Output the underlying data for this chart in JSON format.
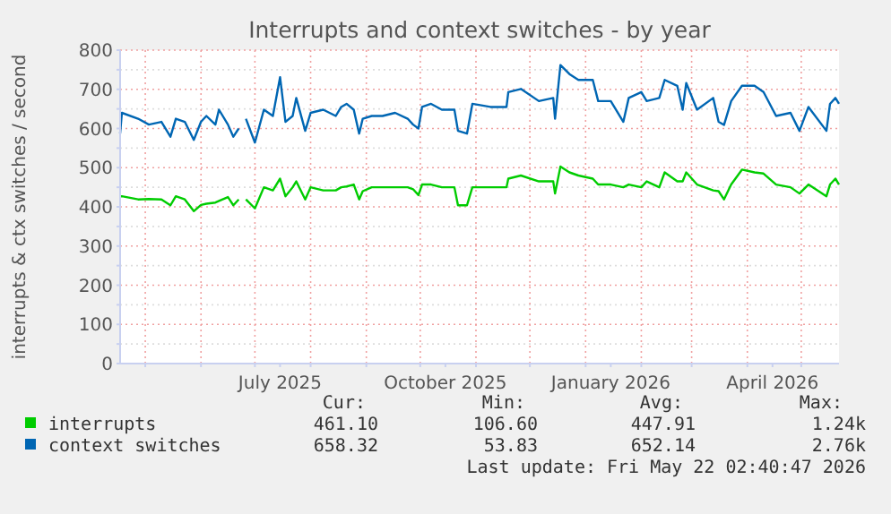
{
  "chart_data": {
    "type": "line",
    "title": "Interrupts and context switches - by year",
    "ylabel": "interrupts & ctx switches / second",
    "x": [
      "2025-04-17",
      "2025-04-18",
      "2025-04-27",
      "2025-05-03",
      "2025-05-10",
      "2025-05-15",
      "2025-05-18",
      "2025-05-23",
      "2025-05-28",
      "2025-06-01",
      "2025-06-04",
      "2025-06-09",
      "2025-06-11",
      "2025-06-16",
      "2025-06-19",
      "2025-06-22",
      "2025-06-24",
      "2025-06-26",
      "2025-07-01",
      "2025-07-06",
      "2025-07-11",
      "2025-07-15",
      "2025-07-18",
      "2025-07-22",
      "2025-07-24",
      "2025-07-29",
      "2025-08-01",
      "2025-08-08",
      "2025-08-15",
      "2025-08-18",
      "2025-08-21",
      "2025-08-25",
      "2025-08-28",
      "2025-08-30",
      "2025-09-04",
      "2025-09-10",
      "2025-09-17",
      "2025-09-24",
      "2025-09-27",
      "2025-09-30",
      "2025-10-02",
      "2025-10-07",
      "2025-10-13",
      "2025-10-20",
      "2025-10-22",
      "2025-10-27",
      "2025-10-30",
      "2025-11-09",
      "2025-11-18",
      "2025-11-19",
      "2025-11-26",
      "2025-12-06",
      "2025-12-14",
      "2025-12-15",
      "2025-12-18",
      "2025-12-23",
      "2025-12-28",
      "2026-01-05",
      "2026-01-08",
      "2026-01-15",
      "2026-01-22",
      "2026-01-25",
      "2026-02-01",
      "2026-02-04",
      "2026-02-11",
      "2026-02-14",
      "2026-02-21",
      "2026-02-24",
      "2026-02-26",
      "2026-03-04",
      "2026-03-13",
      "2026-03-16",
      "2026-03-19",
      "2026-03-23",
      "2026-03-29",
      "2026-04-05",
      "2026-04-10",
      "2026-04-17",
      "2026-04-25",
      "2026-04-30",
      "2026-05-05",
      "2026-05-15",
      "2026-05-17",
      "2026-05-20",
      "2026-05-22"
    ],
    "series": [
      {
        "name": "interrupts",
        "color": "#00cc00",
        "values": [
          427,
          427,
          419,
          420,
          419,
          404,
          427,
          419,
          389,
          405,
          408,
          411,
          415,
          425,
          404,
          419,
          null,
          419,
          396,
          450,
          442,
          472,
          427,
          450,
          465,
          419,
          450,
          442,
          442,
          450,
          452,
          457,
          419,
          440,
          450,
          450,
          450,
          450,
          445,
          430,
          457,
          457,
          450,
          450,
          404,
          404,
          450,
          450,
          450,
          472,
          480,
          465,
          465,
          434,
          503,
          488,
          480,
          472,
          457,
          457,
          450,
          457,
          450,
          465,
          450,
          488,
          465,
          465,
          488,
          457,
          442,
          440,
          419,
          457,
          495,
          488,
          485,
          457,
          450,
          434,
          457,
          427,
          457,
          472,
          457
        ]
      },
      {
        "name": "context switches",
        "color": "#0066b3",
        "values": [
          587,
          640,
          625,
          610,
          617,
          579,
          625,
          617,
          571,
          617,
          632,
          610,
          648,
          610,
          579,
          600,
          null,
          625,
          564,
          648,
          632,
          731,
          617,
          632,
          678,
          594,
          640,
          648,
          632,
          655,
          663,
          648,
          587,
          625,
          632,
          632,
          640,
          625,
          610,
          600,
          655,
          663,
          648,
          648,
          594,
          587,
          663,
          655,
          655,
          693,
          701,
          670,
          678,
          625,
          762,
          739,
          724,
          724,
          670,
          670,
          617,
          678,
          693,
          670,
          678,
          724,
          709,
          648,
          716,
          648,
          678,
          617,
          609,
          670,
          709,
          709,
          693,
          632,
          640,
          594,
          655,
          594,
          663,
          678,
          663
        ]
      }
    ],
    "xlim": [
      "2025-04-17",
      "2026-05-22"
    ],
    "xticks": [
      {
        "value": "2025-05-01",
        "label": null
      },
      {
        "value": "2025-06-01",
        "label": null
      },
      {
        "value": "2025-07-01",
        "label": null
      },
      {
        "value": "2025-07-15",
        "label": "July 2025"
      },
      {
        "value": "2025-08-01",
        "label": null
      },
      {
        "value": "2025-09-01",
        "label": null
      },
      {
        "value": "2025-10-01",
        "label": null
      },
      {
        "value": "2025-10-15",
        "label": "October 2025"
      },
      {
        "value": "2025-11-01",
        "label": null
      },
      {
        "value": "2025-12-01",
        "label": null
      },
      {
        "value": "2026-01-01",
        "label": null
      },
      {
        "value": "2026-01-15",
        "label": "January 2026"
      },
      {
        "value": "2026-02-01",
        "label": null
      },
      {
        "value": "2026-03-01",
        "label": null
      },
      {
        "value": "2026-04-01",
        "label": null
      },
      {
        "value": "2026-04-15",
        "label": "April 2026"
      },
      {
        "value": "2026-05-01",
        "label": null
      }
    ],
    "ylim": [
      0,
      800
    ],
    "yticks": [
      0,
      {
        "value": 50,
        "label": null
      },
      100,
      {
        "value": 150,
        "label": null
      },
      200,
      {
        "value": 250,
        "label": null
      },
      300,
      {
        "value": 350,
        "label": null
      },
      400,
      {
        "value": 450,
        "label": null
      },
      500,
      {
        "value": 550,
        "label": null
      },
      600,
      {
        "value": 650,
        "label": null
      },
      700,
      {
        "value": 750,
        "label": null
      },
      800
    ],
    "grid": true,
    "legend": "bottom",
    "marker": "none",
    "line_style": "solid",
    "annotations": [
      "Cur:",
      "Min:",
      "Avg:",
      "Max:",
      "461.10",
      "106.60",
      "447.91",
      "1.24k",
      "658.32",
      "53.83",
      "652.14",
      "2.76k",
      "Last update: Fri May 22 02:40:47 2026"
    ]
  }
}
